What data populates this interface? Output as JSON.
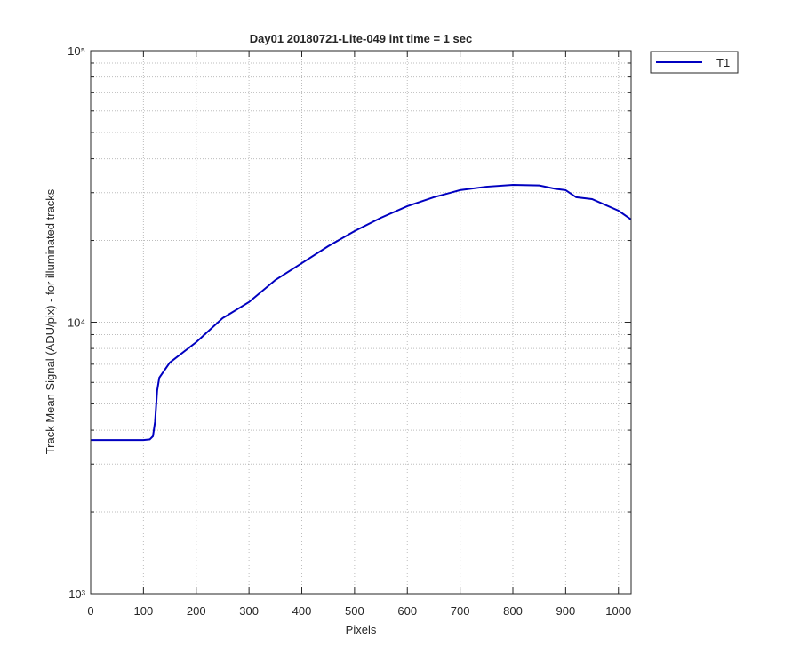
{
  "chart_data": {
    "type": "line",
    "title": "Day01 20180721-Lite-049 int time = 1 sec",
    "xlabel": "Pixels",
    "ylabel": "Track Mean Signal (ADU/pix) - for illuminated tracks",
    "x": [
      0,
      50,
      100,
      112,
      118,
      122,
      126,
      130,
      150,
      200,
      250,
      300,
      350,
      400,
      450,
      500,
      550,
      600,
      650,
      700,
      750,
      800,
      850,
      880,
      900,
      920,
      950,
      1000,
      1024
    ],
    "series": [
      {
        "name": "T1",
        "color": "#0000c0",
        "values": [
          3680,
          3680,
          3680,
          3700,
          3800,
          4300,
          5600,
          6240,
          7100,
          8440,
          10350,
          11860,
          14300,
          16500,
          19050,
          21650,
          24250,
          26750,
          28850,
          30650,
          31550,
          32050,
          31900,
          31000,
          30650,
          28850,
          28400,
          25750,
          23900
        ]
      }
    ],
    "xlim": [
      0,
      1024
    ],
    "xticks": [
      0,
      100,
      200,
      300,
      400,
      500,
      600,
      700,
      800,
      900,
      1000
    ],
    "ylim": [
      1000,
      100000
    ],
    "yticks": [
      {
        "value": 1000,
        "label": "10³"
      },
      {
        "value": 10000,
        "label": "10⁴"
      },
      {
        "value": 100000,
        "label": "10⁵"
      }
    ],
    "yminor": [
      2000,
      3000,
      4000,
      5000,
      6000,
      7000,
      8000,
      9000,
      20000,
      30000,
      40000,
      50000,
      60000,
      70000,
      80000,
      90000
    ],
    "ylog": true,
    "grid": true,
    "legend": "outside-top-right"
  }
}
